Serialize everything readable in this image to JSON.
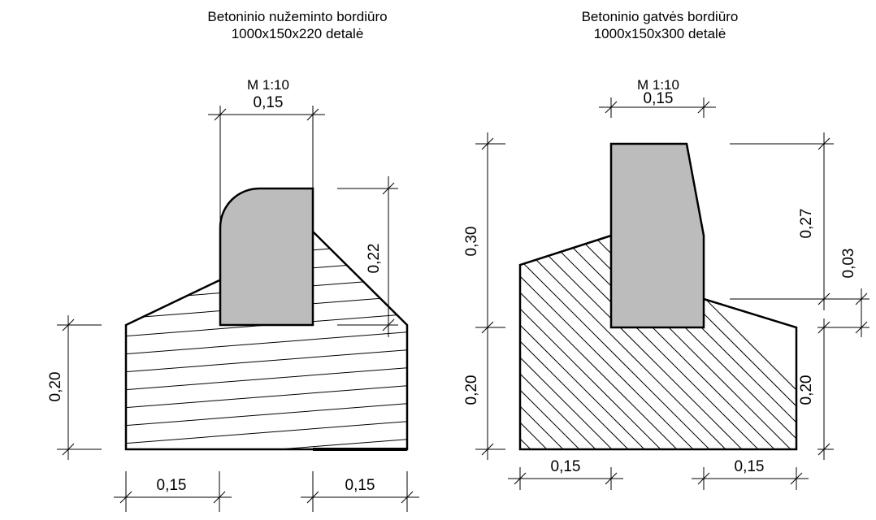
{
  "left_detail": {
    "title_line1": "Betoninio nužeminto bordiūro",
    "title_line2": "1000x150x220 detalė",
    "scale": "M 1:10",
    "dim_top_width": "0,15",
    "dim_height_curb": "0,22",
    "dim_height_base": "0,20",
    "dim_bottom_left": "0,15",
    "dim_bottom_right": "0,15",
    "curb_fill": "#bcbcbc"
  },
  "right_detail": {
    "title_line1": "Betoninio gatvės bordiūro",
    "title_line2": "1000x150x300 detalė",
    "scale": "M 1:10",
    "dim_top_width": "0,15",
    "dim_total_height": "0,30",
    "dim_height_upper": "0,27",
    "dim_height_step": "0,03",
    "dim_height_base_left": "0,20",
    "dim_height_base_right": "0,20",
    "dim_bottom_left": "0,15",
    "dim_bottom_right": "0,15",
    "curb_fill": "#bcbcbc"
  }
}
